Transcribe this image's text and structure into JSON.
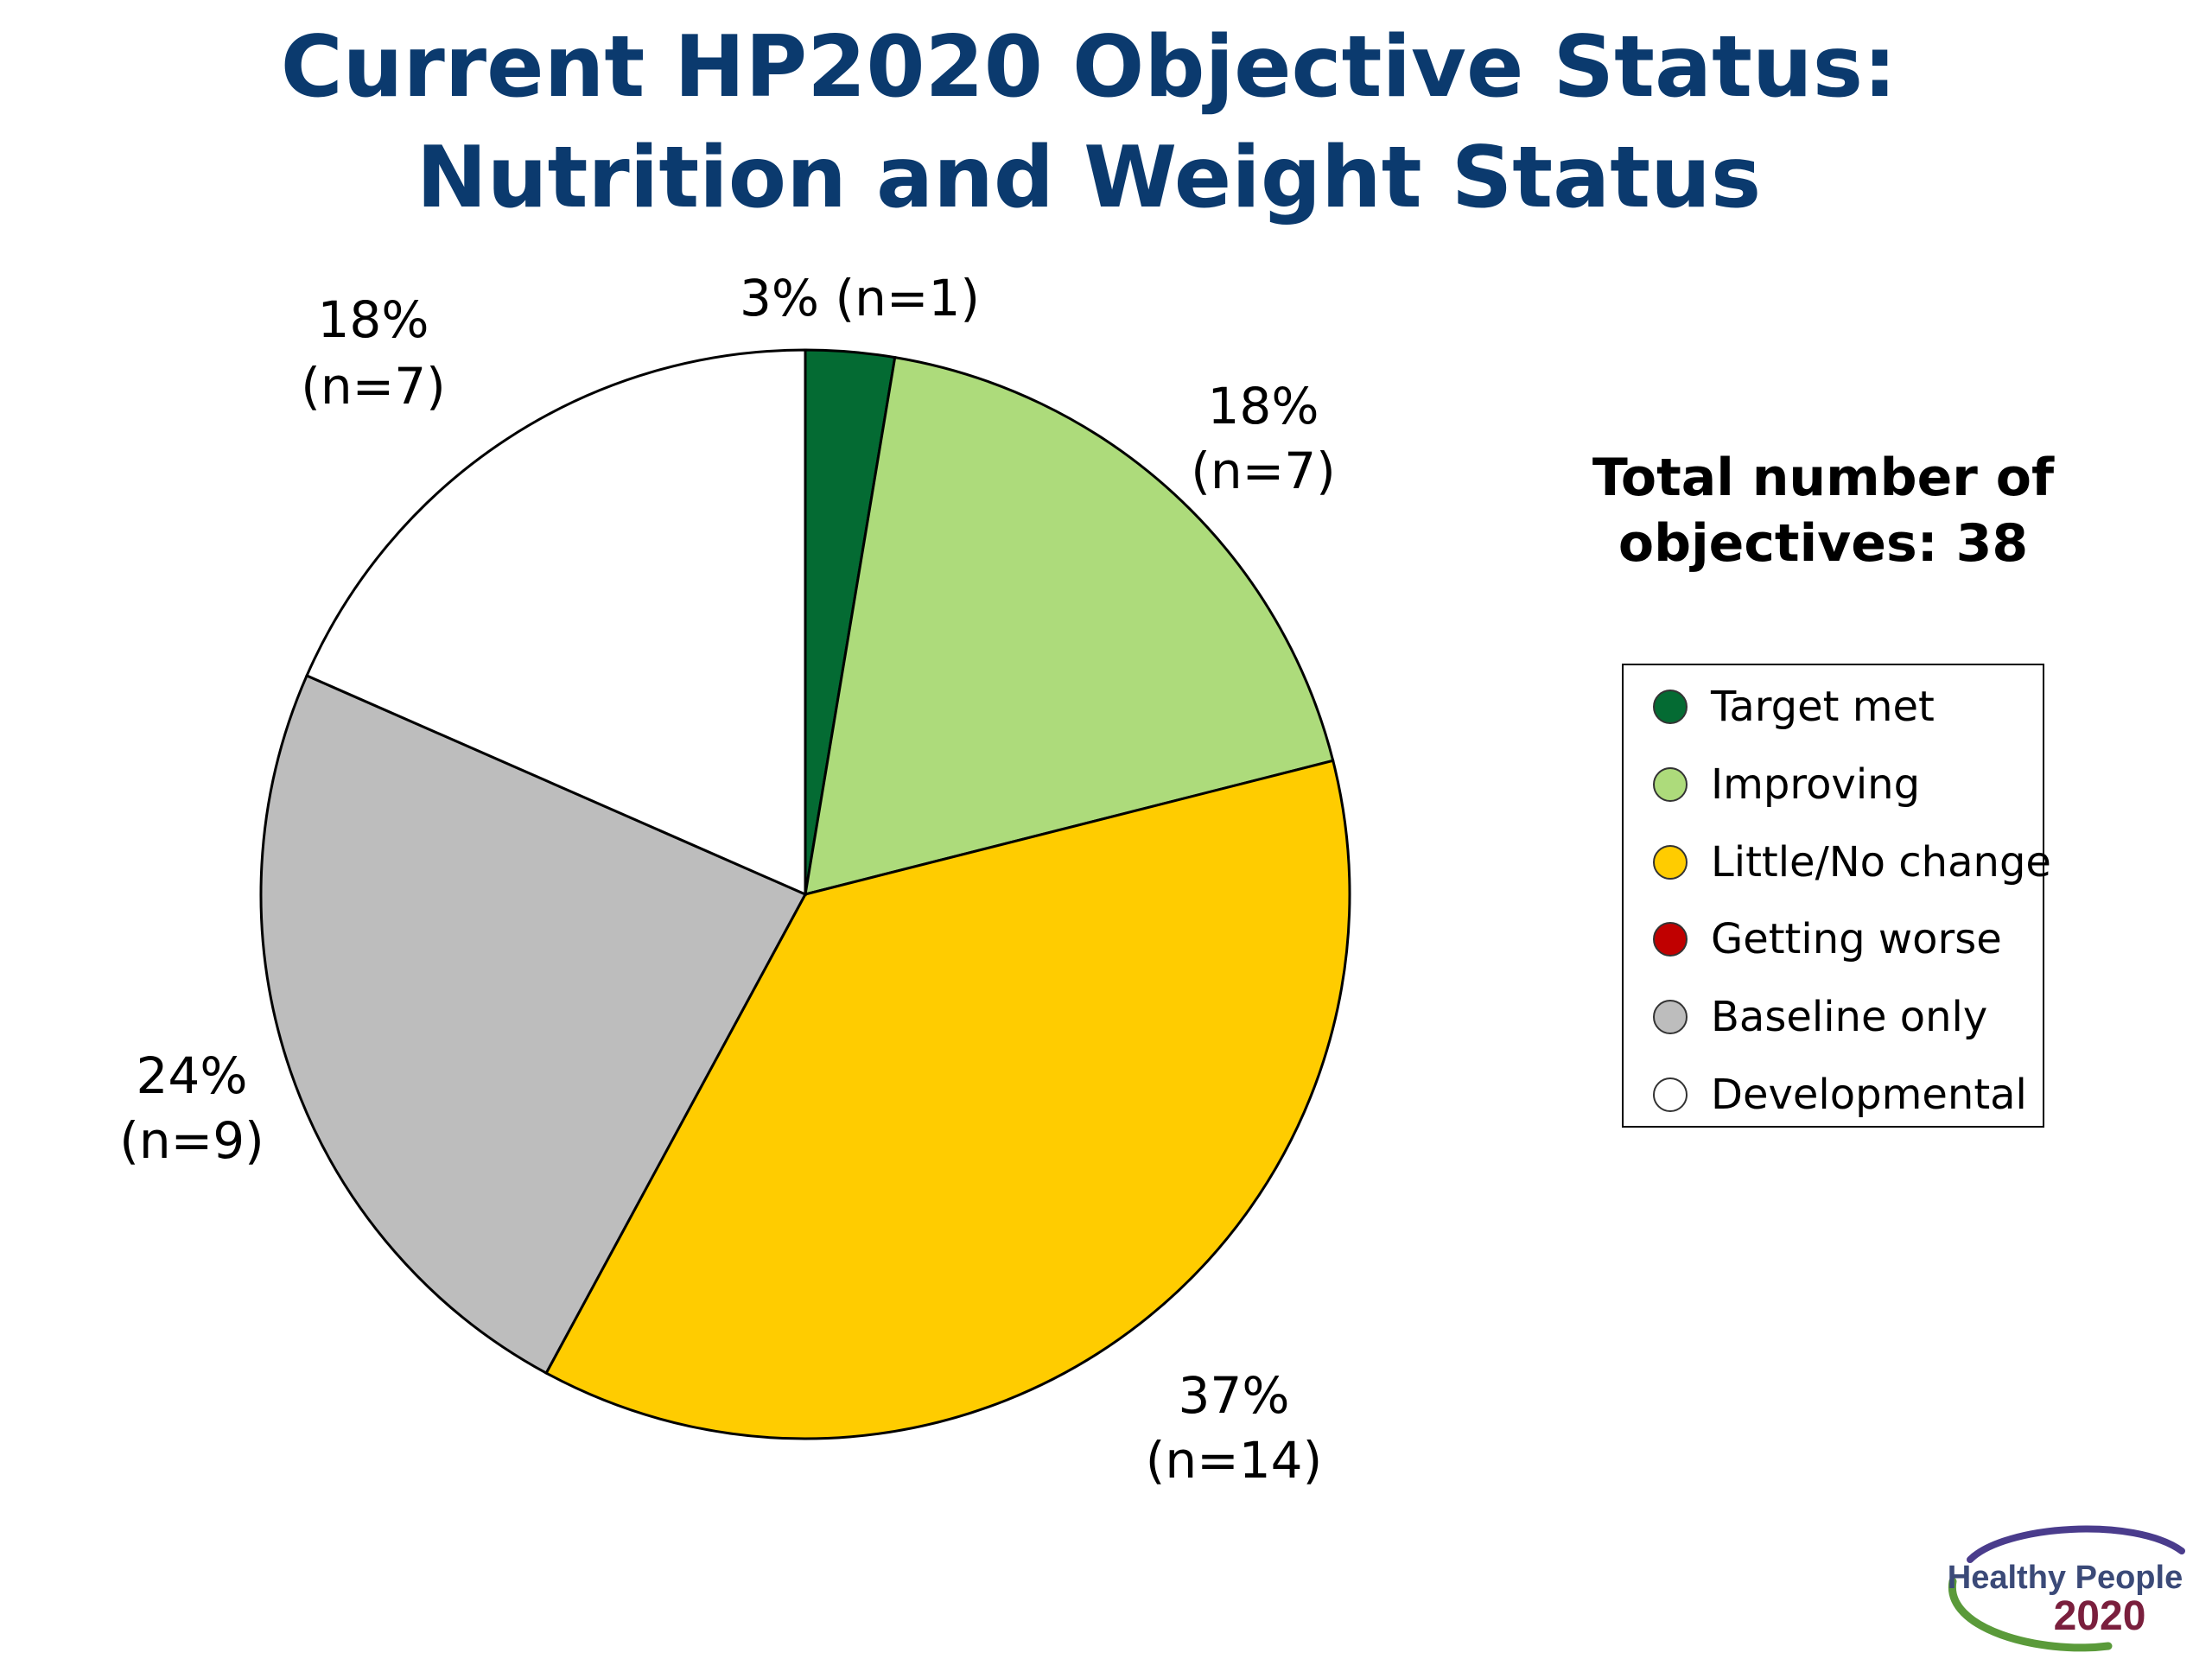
{
  "title": {
    "line1": "Current HP2020 Objective Status:",
    "line2": "Nutrition and Weight Status"
  },
  "total": {
    "line1": "Total number of",
    "line2": "objectives: 38"
  },
  "chart_data": {
    "type": "pie",
    "title": "Current HP2020 Objective Status: Nutrition and Weight Status",
    "total": 38,
    "slices": [
      {
        "name": "Target met",
        "count": 1,
        "percent": 3,
        "color": "#046b33",
        "label_line1": "3% (n=1)",
        "label_line2": ""
      },
      {
        "name": "Improving",
        "count": 7,
        "percent": 18,
        "color": "#addb7b",
        "label_line1": "18%",
        "label_line2": "(n=7)"
      },
      {
        "name": "Little/No change",
        "count": 14,
        "percent": 37,
        "color": "#ffcc00",
        "label_line1": "37%",
        "label_line2": "(n=14)"
      },
      {
        "name": "Baseline only",
        "count": 9,
        "percent": 24,
        "color": "#bdbdbd",
        "label_line1": "24%",
        "label_line2": "(n=9)"
      },
      {
        "name": "Developmental",
        "count": 7,
        "percent": 18,
        "color": "#ffffff",
        "label_line1": "18%",
        "label_line2": "(n=7)"
      }
    ],
    "legend_position": "right"
  },
  "legend": [
    {
      "label": "Target met",
      "color": "#046b33"
    },
    {
      "label": "Improving",
      "color": "#addb7b"
    },
    {
      "label": "Little/No change",
      "color": "#ffcc00"
    },
    {
      "label": "Getting worse",
      "color": "#c00000"
    },
    {
      "label": "Baseline only",
      "color": "#bdbdbd"
    },
    {
      "label": "Developmental",
      "color": "#ffffff"
    }
  ],
  "logo": {
    "line1": "Healthy People",
    "line2": "2020"
  }
}
